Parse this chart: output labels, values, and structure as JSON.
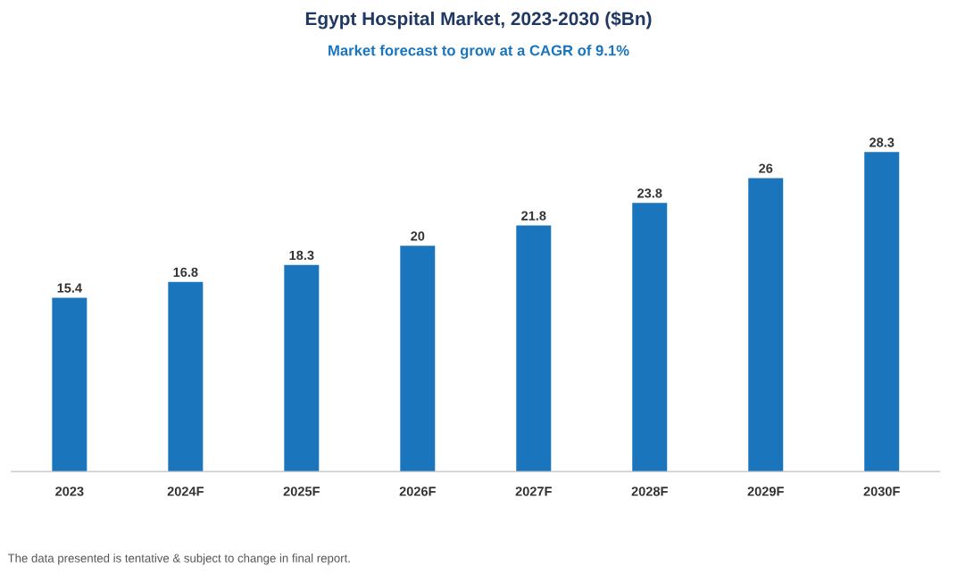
{
  "chart_data": {
    "type": "bar",
    "title": "Egypt Hospital Market, 2023-2030 ($Bn)",
    "subtitle": "Market forecast to grow at a CAGR of 9.1%",
    "categories": [
      "2023",
      "2024F",
      "2025F",
      "2026F",
      "2027F",
      "2028F",
      "2029F",
      "2030F"
    ],
    "values": [
      15.4,
      16.8,
      18.3,
      20,
      21.8,
      23.8,
      26,
      28.3
    ],
    "color": "#1a75bc",
    "data_labels": true,
    "grid": false,
    "legend": false,
    "annotations": [
      "The data presented is tentative & subject to change in final report."
    ]
  }
}
